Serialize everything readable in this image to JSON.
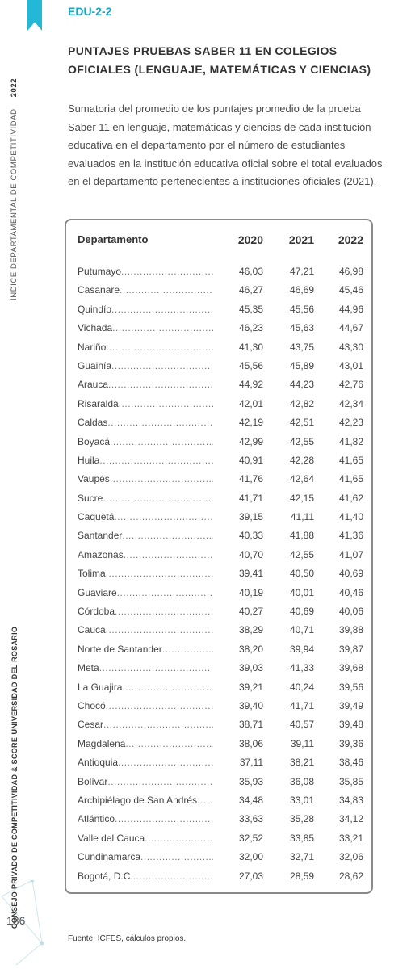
{
  "sidebar": {
    "title": "ÍNDICE DEPARTAMENTAL DE COMPETITIVIDAD",
    "year": "2022",
    "organization": "CONSEJO PRIVADO DE COMPETITIVIDAD & SCORE-UNIVERSIDAD DEL ROSARIO",
    "page_number": "186",
    "accent_color": "#22b8d6"
  },
  "header": {
    "code": "EDU-2-2",
    "title": "PUNTAJES PRUEBAS SABER 11 EN COLEGIOS OFICIALES (LENGUAJE, MATEMÁTICAS Y CIENCIAS)",
    "description": "Sumatoria del promedio de los puntajes promedio de la prueba Saber 11 en lenguaje, matemáticas y ciencias de cada institución educativa en el departamento por el número de estudiantes evaluados en la institución educativa oficial sobre el total evaluados en el departamento pertenecientes a instituciones oficiales (2021)."
  },
  "table": {
    "columns": [
      "Departamento",
      "2020",
      "2021",
      "2022"
    ],
    "rows": [
      [
        "Putumayo",
        "46,03",
        "47,21",
        "46,98"
      ],
      [
        "Casanare",
        "46,27",
        "46,69",
        "45,46"
      ],
      [
        "Quindío",
        "45,35",
        "45,56",
        "44,96"
      ],
      [
        "Vichada",
        "46,23",
        "45,63",
        "44,67"
      ],
      [
        "Nariño",
        "41,30",
        "43,75",
        "43,30"
      ],
      [
        "Guainía",
        "45,56",
        "45,89",
        "43,01"
      ],
      [
        "Arauca",
        "44,92",
        "44,23",
        "42,76"
      ],
      [
        "Risaralda",
        "42,01",
        "42,82",
        "42,34"
      ],
      [
        "Caldas",
        "42,19",
        "42,51",
        "42,23"
      ],
      [
        "Boyacá",
        "42,99",
        "42,55",
        "41,82"
      ],
      [
        "Huila",
        "40,91",
        "42,28",
        "41,65"
      ],
      [
        "Vaupés",
        "41,76",
        "42,64",
        "41,65"
      ],
      [
        "Sucre",
        "41,71",
        "42,15",
        "41,62"
      ],
      [
        "Caquetá",
        "39,15",
        "41,11",
        "41,40"
      ],
      [
        "Santander",
        "40,33",
        "41,88",
        "41,36"
      ],
      [
        "Amazonas",
        "40,70",
        "42,55",
        "41,07"
      ],
      [
        "Tolima",
        "39,41",
        "40,50",
        "40,69"
      ],
      [
        "Guaviare",
        "40,19",
        "40,01",
        "40,46"
      ],
      [
        "Córdoba",
        "40,27",
        "40,69",
        "40,06"
      ],
      [
        "Cauca",
        "38,29",
        "40,71",
        "39,88"
      ],
      [
        "Norte de Santander",
        "38,20",
        "39,94",
        "39,87"
      ],
      [
        "Meta",
        "39,03",
        "41,33",
        "39,68"
      ],
      [
        "La Guajira",
        "39,21",
        "40,24",
        "39,56"
      ],
      [
        "Chocó",
        "39,40",
        "41,71",
        "39,49"
      ],
      [
        "Cesar",
        "38,71",
        "40,57",
        "39,48"
      ],
      [
        "Magdalena",
        "38,06",
        "39,11",
        "39,36"
      ],
      [
        "Antioquia",
        "37,11",
        "38,21",
        "38,46"
      ],
      [
        "Bolívar",
        "35,93",
        "36,08",
        "35,85"
      ],
      [
        "Archipiélago de San Andrés",
        "34,48",
        "33,01",
        "34,83"
      ],
      [
        "Atlántico",
        "33,63",
        "35,28",
        "34,12"
      ],
      [
        "Valle del Cauca",
        "32,52",
        "33,85",
        "33,21"
      ],
      [
        "Cundinamarca",
        "32,00",
        "32,71",
        "32,06"
      ],
      [
        "Bogotá, D.C.",
        "27,03",
        "28,59",
        "28,62"
      ]
    ]
  },
  "footer": {
    "source": "Fuente: ICFES, cálculos propios."
  }
}
